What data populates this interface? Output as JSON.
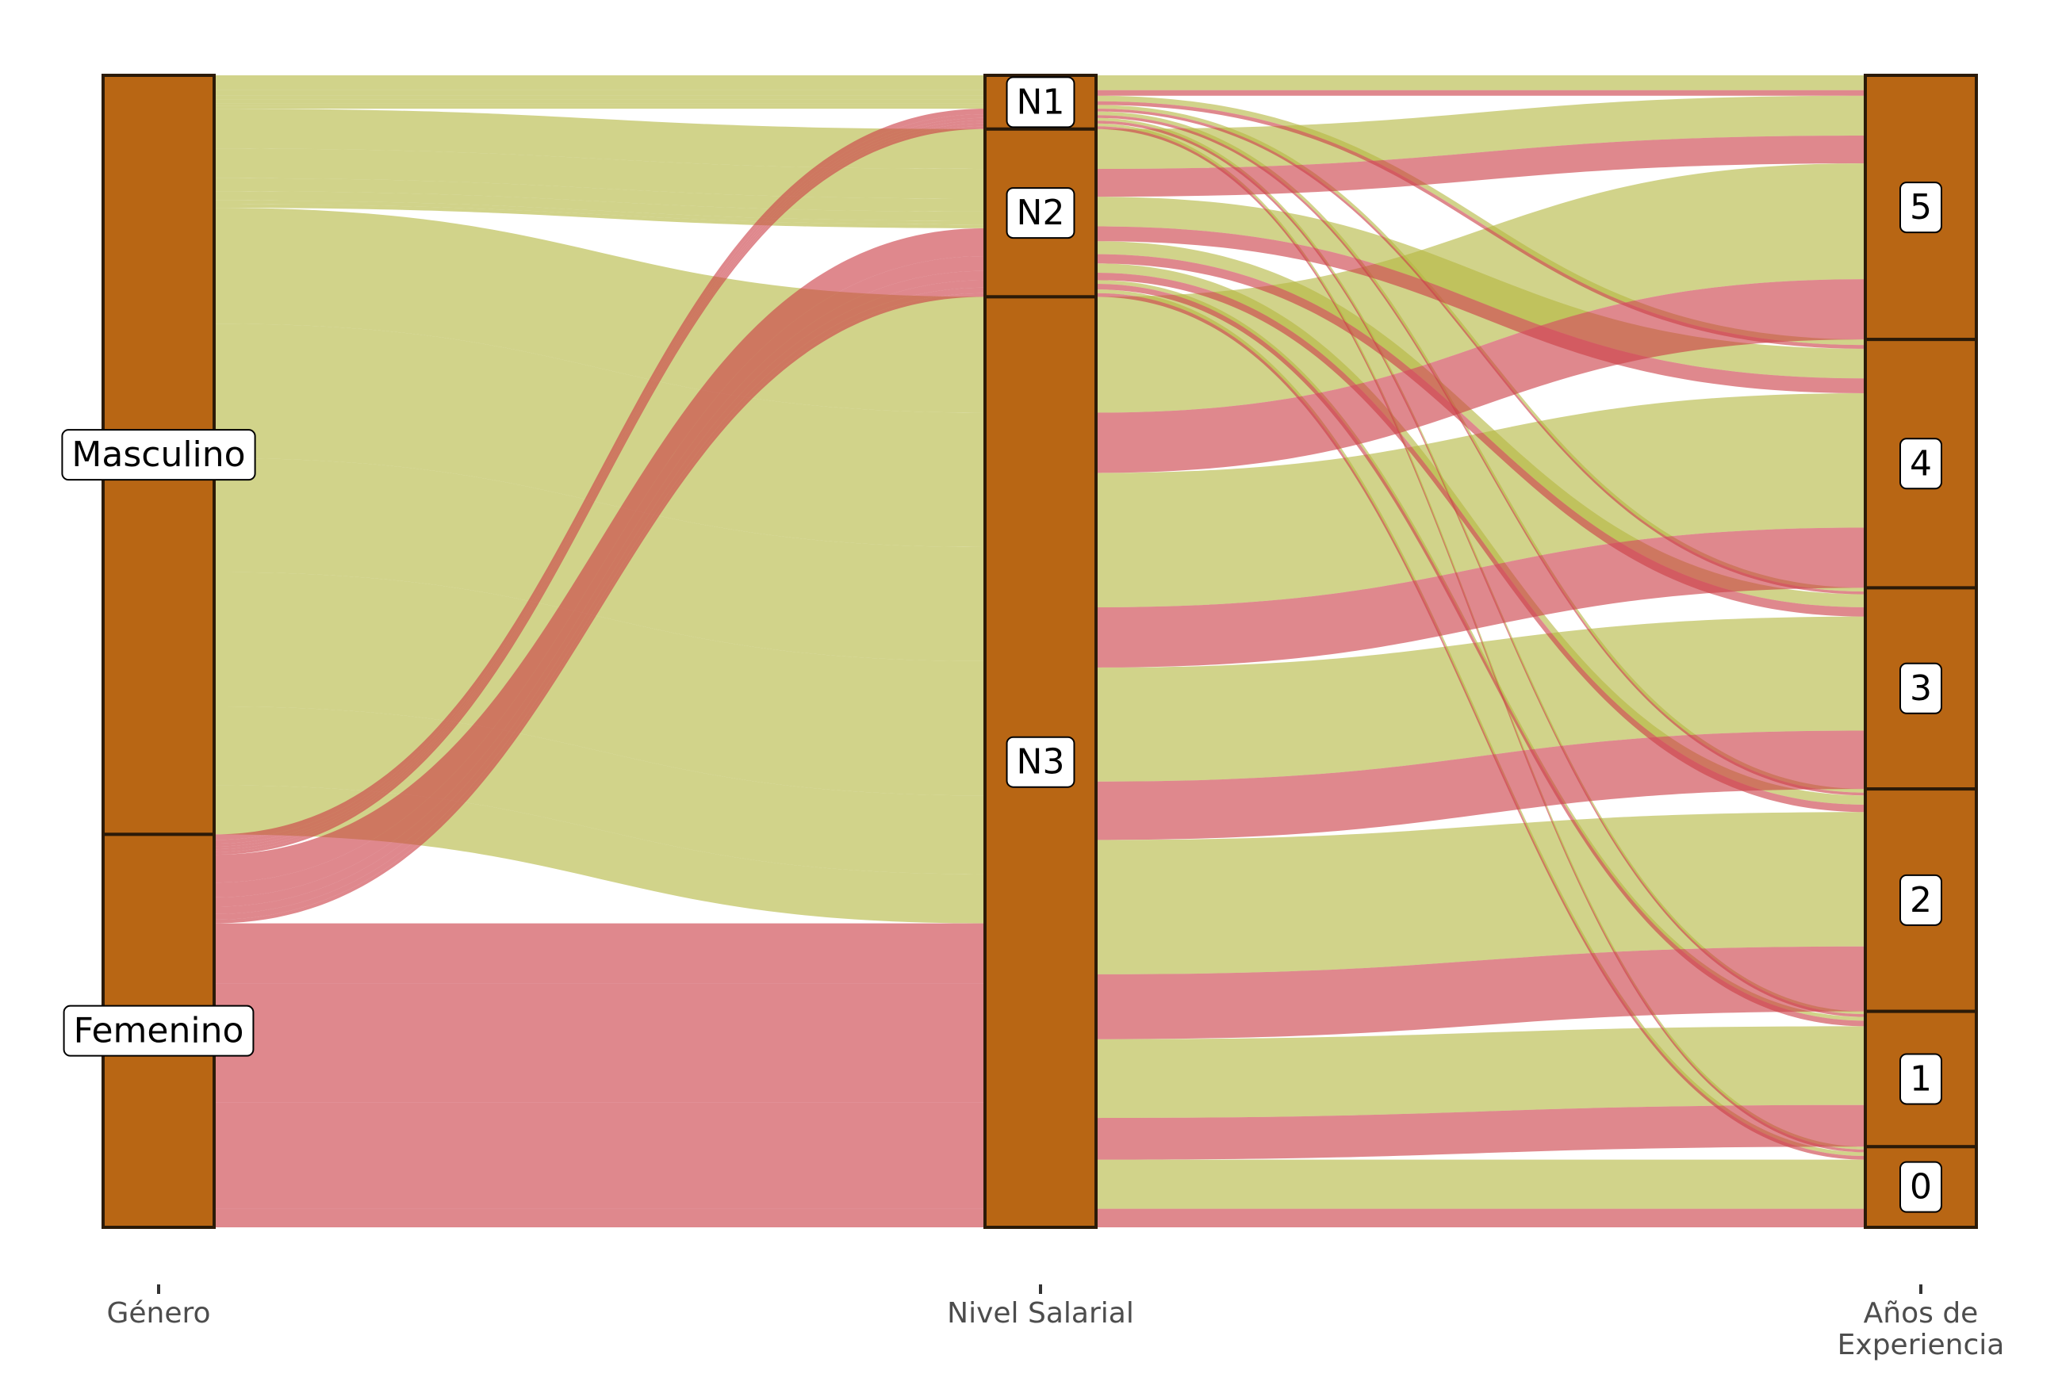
{
  "chart_data": {
    "type": "alluvial",
    "title": "",
    "axes": [
      {
        "name": "Género",
        "strata": [
          "Masculino",
          "Femenino"
        ]
      },
      {
        "name": "Nivel Salarial",
        "strata": [
          "N1",
          "N2",
          "N3"
        ]
      },
      {
        "name": "Años de\nExperiencia",
        "strata": [
          "5",
          "4",
          "3",
          "2",
          "1",
          "0"
        ]
      }
    ],
    "colors": {
      "Masculino": "#b5b842",
      "Femenino": "#cc3f47",
      "stratum_fill": "#b86614",
      "stratum_border": "#2b1a08"
    },
    "flow_opacity": 0.62,
    "flows": [
      {
        "g": "Masculino",
        "n": "N1",
        "y": "5",
        "v": 1.6
      },
      {
        "g": "Masculino",
        "n": "N1",
        "y": "4",
        "v": 0.6
      },
      {
        "g": "Masculino",
        "n": "N1",
        "y": "3",
        "v": 0.4
      },
      {
        "g": "Masculino",
        "n": "N1",
        "y": "2",
        "v": 0.4
      },
      {
        "g": "Masculino",
        "n": "N1",
        "y": "1",
        "v": 0.3
      },
      {
        "g": "Masculino",
        "n": "N1",
        "y": "0",
        "v": 0.3
      },
      {
        "g": "Masculino",
        "n": "N2",
        "y": "5",
        "v": 4.3
      },
      {
        "g": "Masculino",
        "n": "N2",
        "y": "4",
        "v": 3.2
      },
      {
        "g": "Masculino",
        "n": "N2",
        "y": "3",
        "v": 1.4
      },
      {
        "g": "Masculino",
        "n": "N2",
        "y": "2",
        "v": 1.0
      },
      {
        "g": "Masculino",
        "n": "N2",
        "y": "1",
        "v": 0.4
      },
      {
        "g": "Masculino",
        "n": "N2",
        "y": "0",
        "v": 0.4
      },
      {
        "g": "Masculino",
        "n": "N3",
        "y": "5",
        "v": 12.5
      },
      {
        "g": "Masculino",
        "n": "N3",
        "y": "4",
        "v": 14.5
      },
      {
        "g": "Masculino",
        "n": "N3",
        "y": "3",
        "v": 12.3
      },
      {
        "g": "Masculino",
        "n": "N3",
        "y": "2",
        "v": 14.5
      },
      {
        "g": "Masculino",
        "n": "N3",
        "y": "1",
        "v": 8.5
      },
      {
        "g": "Masculino",
        "n": "N3",
        "y": "0",
        "v": 5.3
      },
      {
        "g": "Femenino",
        "n": "N1",
        "y": "5",
        "v": 0.6
      },
      {
        "g": "Femenino",
        "n": "N1",
        "y": "4",
        "v": 0.4
      },
      {
        "g": "Femenino",
        "n": "N1",
        "y": "3",
        "v": 0.3
      },
      {
        "g": "Femenino",
        "n": "N1",
        "y": "2",
        "v": 0.3
      },
      {
        "g": "Femenino",
        "n": "N1",
        "y": "1",
        "v": 0.3
      },
      {
        "g": "Femenino",
        "n": "N1",
        "y": "0",
        "v": 0.3
      },
      {
        "g": "Femenino",
        "n": "N2",
        "y": "5",
        "v": 3.0
      },
      {
        "g": "Femenino",
        "n": "N2",
        "y": "4",
        "v": 1.6
      },
      {
        "g": "Femenino",
        "n": "N2",
        "y": "3",
        "v": 1.0
      },
      {
        "g": "Femenino",
        "n": "N2",
        "y": "2",
        "v": 0.8
      },
      {
        "g": "Femenino",
        "n": "N2",
        "y": "1",
        "v": 0.6
      },
      {
        "g": "Femenino",
        "n": "N2",
        "y": "0",
        "v": 0.4
      },
      {
        "g": "Femenino",
        "n": "N3",
        "y": "5",
        "v": 6.5
      },
      {
        "g": "Femenino",
        "n": "N3",
        "y": "4",
        "v": 6.5
      },
      {
        "g": "Femenino",
        "n": "N3",
        "y": "3",
        "v": 6.3
      },
      {
        "g": "Femenino",
        "n": "N3",
        "y": "2",
        "v": 7.0
      },
      {
        "g": "Femenino",
        "n": "N3",
        "y": "1",
        "v": 4.5
      },
      {
        "g": "Femenino",
        "n": "N3",
        "y": "0",
        "v": 2.0
      }
    ]
  }
}
